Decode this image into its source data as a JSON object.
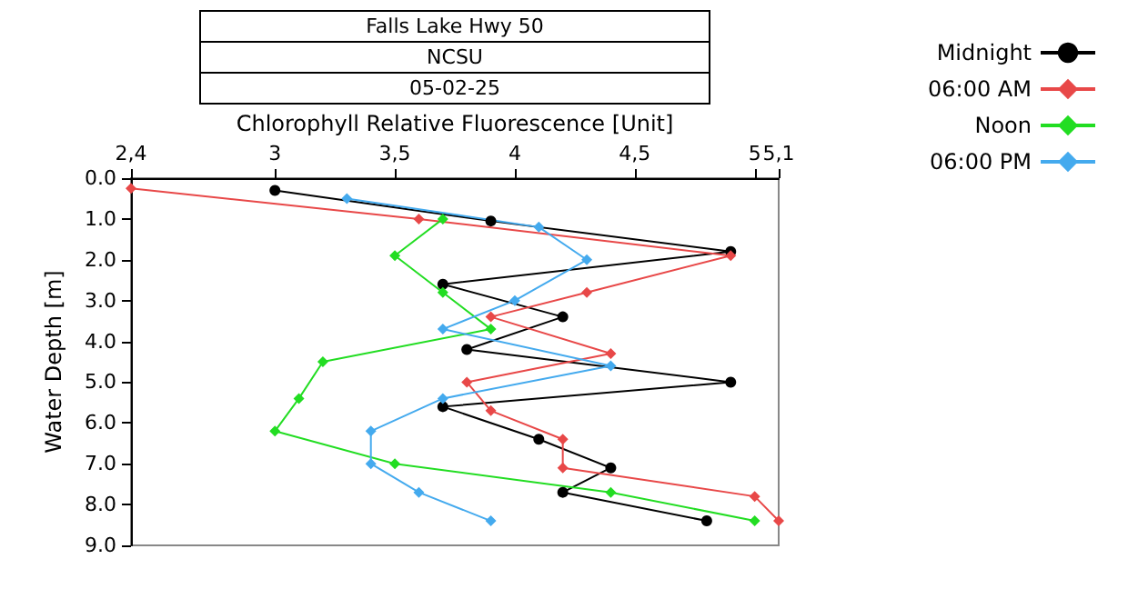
{
  "chart_data": {
    "type": "line",
    "title": "Falls Lake Hwy 50",
    "subtitle": "NCSU",
    "annotations": [
      "05-02-25"
    ],
    "xlabel": "Chlorophyll Relative Fluorescence [Unit]",
    "ylabel": "Water Depth [m]",
    "xlim": [
      2.4,
      5.1
    ],
    "xticks": [
      {
        "value": 2.4,
        "label": "2,4"
      },
      3,
      {
        "value": 3.5,
        "label": "3,5"
      },
      4,
      {
        "value": 4.5,
        "label": "4,5"
      },
      5,
      {
        "value": 5.1,
        "label": "5,1"
      }
    ],
    "ylim": [
      9,
      0
    ],
    "yticks": [
      {
        "value": 0,
        "label": "0.0"
      },
      {
        "value": 1,
        "label": "1.0"
      },
      {
        "value": 2,
        "label": "2.0"
      },
      {
        "value": 3,
        "label": "3.0"
      },
      {
        "value": 4,
        "label": "4.0"
      },
      {
        "value": 5,
        "label": "5.0"
      },
      {
        "value": 6,
        "label": "6.0"
      },
      {
        "value": 7,
        "label": "7.0"
      },
      {
        "value": 8,
        "label": "8.0"
      },
      {
        "value": 9,
        "label": "9.0"
      }
    ],
    "grid": false,
    "legend": "top right",
    "line_style": "solid",
    "series": [
      {
        "name": "Midnight",
        "color": "#000000",
        "marker": "circle",
        "x": [
          3.0,
          3.9,
          4.9,
          3.7,
          4.2,
          3.8,
          4.9,
          3.7,
          4.1,
          4.4,
          4.2,
          4.8
        ],
        "values": [
          0.3,
          1.05,
          1.8,
          2.6,
          3.4,
          4.2,
          5.0,
          5.6,
          6.4,
          7.1,
          7.7,
          8.4
        ]
      },
      {
        "name": "06:00 AM",
        "color": "#e84848",
        "marker": "diamond",
        "x": [
          2.4,
          3.6,
          4.9,
          4.3,
          3.9,
          4.4,
          3.8,
          3.9,
          4.2,
          4.2,
          5.0,
          5.1
        ],
        "values": [
          0.25,
          1.0,
          1.9,
          2.8,
          3.4,
          4.3,
          5.0,
          5.7,
          6.4,
          7.1,
          7.8,
          8.4
        ]
      },
      {
        "name": "Noon",
        "color": "#22dd22",
        "marker": "diamond",
        "x": [
          3.7,
          3.5,
          3.7,
          3.9,
          3.2,
          3.1,
          3.0,
          3.5,
          4.4,
          5.0
        ],
        "values": [
          1.0,
          1.9,
          2.8,
          3.7,
          4.5,
          5.4,
          6.2,
          7.0,
          7.7,
          8.4
        ]
      },
      {
        "name": "06:00 PM",
        "color": "#44aaee",
        "marker": "diamond",
        "x": [
          3.3,
          4.1,
          4.3,
          4.0,
          3.7,
          4.4,
          3.7,
          3.4,
          3.4,
          3.6,
          3.9
        ],
        "values": [
          0.5,
          1.2,
          2.0,
          3.0,
          3.7,
          4.6,
          5.4,
          6.2,
          7.0,
          7.7,
          8.4
        ]
      }
    ]
  }
}
